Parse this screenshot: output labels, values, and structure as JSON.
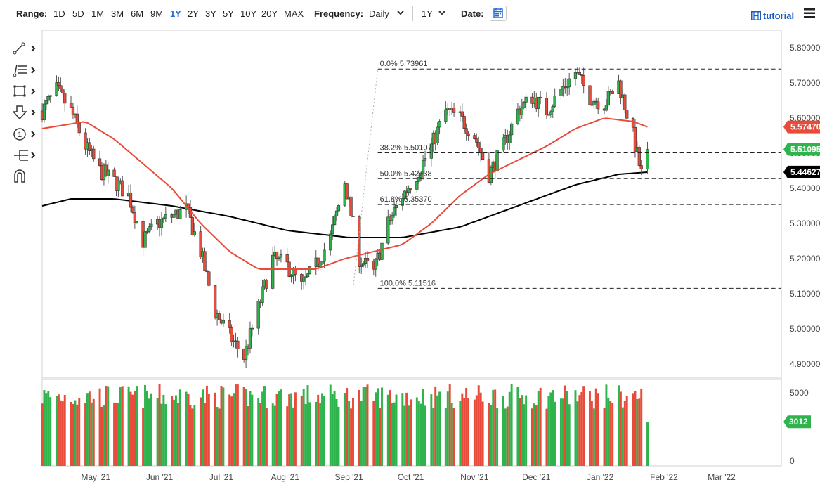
{
  "toolbar": {
    "range_label": "Range:",
    "ranges": [
      "1D",
      "5D",
      "1M",
      "3M",
      "6M",
      "9M",
      "1Y",
      "2Y",
      "3Y",
      "5Y",
      "10Y",
      "20Y",
      "MAX"
    ],
    "active_range": "1Y",
    "frequency_label": "Frequency:",
    "frequency_value": "Daily",
    "period_value": "1Y",
    "date_label": "Date:",
    "tutorial_label": "tutorial"
  },
  "side_tools": [
    "trend-line-icon",
    "fib-retracement-icon",
    "rectangle-icon",
    "arrow-down-icon",
    "number-marker-icon",
    "pitchfork-icon",
    "magnet-icon"
  ],
  "colors": {
    "up": "#2fb34d",
    "down": "#e84b3a",
    "ma50": "#e84b3a",
    "ma200": "#000000",
    "accent": "#2a6bd6"
  },
  "chart_data": {
    "type": "candlestick",
    "ylim": [
      4.86,
      5.85
    ],
    "y_ticks": [
      "5.80000",
      "5.70000",
      "5.60000",
      "5.50000",
      "5.40000",
      "5.30000",
      "5.20000",
      "5.10000",
      "5.00000",
      "4.90000"
    ],
    "y_tick_values": [
      5.8,
      5.7,
      5.6,
      5.5,
      5.4,
      5.3,
      5.2,
      5.1,
      5.0,
      4.9
    ],
    "x_labels": [
      "May '21",
      "Jun '21",
      "Jul '21",
      "Aug '21",
      "Sep '21",
      "Oct '21",
      "Nov '21",
      "Dec '21",
      "Jan '22",
      "Feb '22",
      "Mar '22"
    ],
    "x_label_dates": [
      "2021-05-01",
      "2021-06-01",
      "2021-07-01",
      "2021-08-01",
      "2021-09-01",
      "2021-10-01",
      "2021-11-01",
      "2021-12-01",
      "2022-01-01",
      "2022-02-01",
      "2022-03-01"
    ],
    "x_range": [
      "2021-04-05",
      "2022-03-30"
    ],
    "last_date": "2022-01-24",
    "price_path": [
      [
        "2021-04-05",
        5.62
      ],
      [
        "2021-04-12",
        5.68
      ],
      [
        "2021-04-19",
        5.62
      ],
      [
        "2021-04-26",
        5.52
      ],
      [
        "2021-05-03",
        5.45
      ],
      [
        "2021-05-10",
        5.42
      ],
      [
        "2021-05-17",
        5.38
      ],
      [
        "2021-05-24",
        5.25
      ],
      [
        "2021-05-31",
        5.3
      ],
      [
        "2021-06-07",
        5.32
      ],
      [
        "2021-06-14",
        5.34
      ],
      [
        "2021-06-21",
        5.22
      ],
      [
        "2021-06-28",
        5.05
      ],
      [
        "2021-07-05",
        4.98
      ],
      [
        "2021-07-12",
        4.92
      ],
      [
        "2021-07-19",
        5.06
      ],
      [
        "2021-07-26",
        5.2
      ],
      [
        "2021-08-02",
        5.18
      ],
      [
        "2021-08-09",
        5.12
      ],
      [
        "2021-08-16",
        5.18
      ],
      [
        "2021-08-23",
        5.26
      ],
      [
        "2021-08-30",
        5.42
      ],
      [
        "2021-09-06",
        5.2
      ],
      [
        "2021-09-13",
        5.16
      ],
      [
        "2021-09-20",
        5.3
      ],
      [
        "2021-09-27",
        5.38
      ],
      [
        "2021-10-04",
        5.44
      ],
      [
        "2021-10-11",
        5.52
      ],
      [
        "2021-10-18",
        5.62
      ],
      [
        "2021-10-25",
        5.6
      ],
      [
        "2021-11-01",
        5.55
      ],
      [
        "2021-11-08",
        5.44
      ],
      [
        "2021-11-15",
        5.52
      ],
      [
        "2021-11-22",
        5.62
      ],
      [
        "2021-11-29",
        5.66
      ],
      [
        "2021-12-06",
        5.62
      ],
      [
        "2021-12-13",
        5.68
      ],
      [
        "2021-12-20",
        5.73
      ],
      [
        "2021-12-27",
        5.66
      ],
      [
        "2022-01-03",
        5.64
      ],
      [
        "2022-01-10",
        5.7
      ],
      [
        "2022-01-17",
        5.55
      ],
      [
        "2022-01-21",
        5.44
      ],
      [
        "2022-01-24",
        5.51
      ]
    ],
    "ma50_path": [
      [
        "2021-04-05",
        5.57
      ],
      [
        "2021-04-26",
        5.59
      ],
      [
        "2021-05-10",
        5.54
      ],
      [
        "2021-05-24",
        5.47
      ],
      [
        "2021-06-07",
        5.4
      ],
      [
        "2021-06-21",
        5.3
      ],
      [
        "2021-07-05",
        5.22
      ],
      [
        "2021-07-19",
        5.17
      ],
      [
        "2021-08-02",
        5.17
      ],
      [
        "2021-08-16",
        5.17
      ],
      [
        "2021-08-30",
        5.2
      ],
      [
        "2021-09-13",
        5.22
      ],
      [
        "2021-09-27",
        5.24
      ],
      [
        "2021-10-11",
        5.3
      ],
      [
        "2021-10-25",
        5.38
      ],
      [
        "2021-11-08",
        5.44
      ],
      [
        "2021-11-22",
        5.48
      ],
      [
        "2021-12-06",
        5.52
      ],
      [
        "2021-12-20",
        5.57
      ],
      [
        "2022-01-03",
        5.6
      ],
      [
        "2022-01-17",
        5.59
      ],
      [
        "2022-01-24",
        5.575
      ]
    ],
    "ma200_path": [
      [
        "2021-04-05",
        5.35
      ],
      [
        "2021-04-19",
        5.37
      ],
      [
        "2021-05-10",
        5.37
      ],
      [
        "2021-06-07",
        5.35
      ],
      [
        "2021-07-05",
        5.32
      ],
      [
        "2021-08-02",
        5.28
      ],
      [
        "2021-09-01",
        5.26
      ],
      [
        "2021-09-27",
        5.26
      ],
      [
        "2021-10-25",
        5.29
      ],
      [
        "2021-11-22",
        5.35
      ],
      [
        "2021-12-20",
        5.41
      ],
      [
        "2022-01-10",
        5.44
      ],
      [
        "2022-01-24",
        5.446
      ]
    ],
    "fib_levels": [
      {
        "label": "0.0% 5.73961",
        "value": 5.73961
      },
      {
        "label": "38.2% 5.50107",
        "value": 5.50107
      },
      {
        "label": "50.0% 5.42738",
        "value": 5.42738
      },
      {
        "label": "61.8% 5.35370",
        "value": 5.3537
      },
      {
        "label": "100.0% 5.11516",
        "value": 5.11516
      }
    ],
    "fib_anchor_start": [
      "2021-09-03",
      5.11516
    ],
    "fib_anchor_end": [
      "2021-09-15",
      5.73961
    ],
    "price_badges": [
      {
        "label": "5.57470",
        "value": 5.5747,
        "color": "#e84b3a"
      },
      {
        "label": "5.51095",
        "value": 5.51095,
        "color": "#2fb34d"
      },
      {
        "label": "5.44627",
        "value": 5.44627,
        "color": "#000000"
      }
    ],
    "volume": {
      "ylim": [
        0,
        5900
      ],
      "y_ticks": [
        "5000",
        "0"
      ],
      "y_tick_values": [
        5000,
        0
      ],
      "last_value": 3012,
      "last_label": "3012",
      "typical": 5000
    }
  }
}
